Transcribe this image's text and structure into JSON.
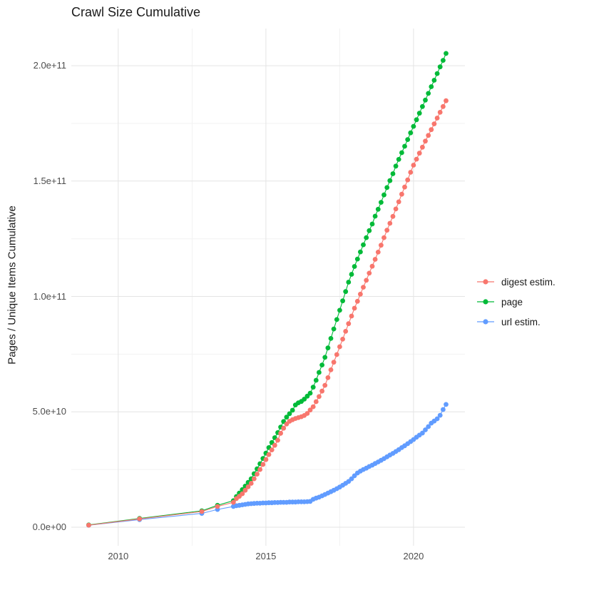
{
  "chart": {
    "title": "Crawl Size Cumulative",
    "y_axis_title": "Pages / Unique Items Cumulative"
  },
  "style": {
    "background": "#ffffff",
    "title_color": "#1a1a1a",
    "tick_label_color": "#4d4d4d",
    "grid_major_color": "#e4e4e4",
    "grid_minor_color": "#f2f2f2",
    "series_colors": {
      "digest": "#F8766D",
      "page": "#00BA38",
      "url": "#619CFF"
    }
  },
  "chart_data": {
    "type": "line",
    "title": "Crawl Size Cumulative",
    "xlabel": "",
    "ylabel": "Pages / Unique Items Cumulative",
    "value_unit": "billions (1e9) of pages / unique items, cumulative",
    "legend_position": "right-center",
    "grid": "major and minor, light gray on white panel",
    "marker_style": "filled circle on thin line",
    "axes": {
      "xlim": [
        2008.41,
        2021.74
      ],
      "ylim": [
        -8.04,
        216.1
      ],
      "x_major_ticks": [
        2010,
        2015,
        2020
      ],
      "x_tick_labels": [
        "2010",
        "2015",
        "2020"
      ],
      "x_minor_ticks": [
        2012.5,
        2017.5
      ],
      "y_major_ticks": [
        0,
        50,
        100,
        150,
        200
      ],
      "y_tick_labels": [
        "0.0e+00",
        "5.0e+10",
        "1.0e+11",
        "1.5e+11",
        "2.0e+11"
      ],
      "y_minor_ticks": [
        25,
        75,
        125,
        175
      ]
    },
    "x": [
      2009.0,
      2010.72,
      2012.83,
      2013.36,
      2013.9,
      2014.0,
      2014.1,
      2014.2,
      2014.3,
      2014.4,
      2014.5,
      2014.6,
      2014.7,
      2014.8,
      2014.9,
      2015.0,
      2015.1,
      2015.2,
      2015.3,
      2015.4,
      2015.5,
      2015.6,
      2015.7,
      2015.8,
      2015.9,
      2016.0,
      2016.1,
      2016.2,
      2016.3,
      2016.4,
      2016.5,
      2016.6,
      2016.7,
      2016.8,
      2016.9,
      2017.0,
      2017.1,
      2017.2,
      2017.3,
      2017.4,
      2017.5,
      2017.6,
      2017.7,
      2017.8,
      2017.9,
      2018.0,
      2018.1,
      2018.2,
      2018.3,
      2018.4,
      2018.5,
      2018.6,
      2018.7,
      2018.8,
      2018.9,
      2019.0,
      2019.1,
      2019.2,
      2019.3,
      2019.4,
      2019.5,
      2019.6,
      2019.7,
      2019.8,
      2019.9,
      2020.0,
      2020.1,
      2020.2,
      2020.3,
      2020.4,
      2020.5,
      2020.6,
      2020.7,
      2020.8,
      2020.9,
      2021.0,
      2021.1
    ],
    "series": [
      {
        "name": "digest estim.",
        "color": "#F8766D",
        "values": [
          0.9,
          3.6,
          6.8,
          9.0,
          10.8,
          12.4,
          13.4,
          14.5,
          16.0,
          17.5,
          19.0,
          21.0,
          23.0,
          25.0,
          27.2,
          29.3,
          31.5,
          33.5,
          35.5,
          37.7,
          40.7,
          42.9,
          44.7,
          45.9,
          46.6,
          47.1,
          47.5,
          47.9,
          48.4,
          49.3,
          50.8,
          52.2,
          54.4,
          56.6,
          59.0,
          61.5,
          64.8,
          68.2,
          71.5,
          74.8,
          78.2,
          81.5,
          84.9,
          88.2,
          91.5,
          94.9,
          97.9,
          101.0,
          104.0,
          107.0,
          110.1,
          113.1,
          116.1,
          119.2,
          122.2,
          125.5,
          128.7,
          131.7,
          134.7,
          137.9,
          141.0,
          144.3,
          147.4,
          150.5,
          153.8,
          156.9,
          159.5,
          162.1,
          164.7,
          167.3,
          169.8,
          172.3,
          174.8,
          177.3,
          179.8,
          182.3,
          184.8
        ]
      },
      {
        "name": "page",
        "color": "#00BA38",
        "values": [
          1.0,
          3.8,
          7.1,
          9.5,
          11.5,
          13.3,
          14.8,
          16.3,
          17.8,
          19.4,
          21.0,
          23.2,
          25.3,
          27.5,
          29.8,
          32.1,
          34.5,
          36.7,
          38.8,
          41.0,
          43.4,
          45.8,
          47.7,
          49.2,
          50.7,
          53.0,
          53.9,
          54.5,
          55.5,
          56.8,
          58.1,
          60.7,
          63.7,
          67.1,
          70.3,
          73.6,
          77.7,
          81.8,
          85.9,
          90.0,
          94.0,
          98.1,
          102.1,
          106.2,
          109.6,
          113.0,
          116.2,
          119.3,
          122.4,
          125.5,
          128.5,
          131.4,
          134.8,
          137.8,
          140.8,
          144.0,
          147.2,
          150.2,
          153.2,
          156.5,
          159.4,
          162.3,
          165.1,
          168.0,
          170.9,
          173.7,
          176.6,
          179.4,
          182.3,
          185.1,
          188.0,
          190.9,
          193.7,
          196.6,
          199.5,
          202.3,
          205.3
        ]
      },
      {
        "name": "url estim.",
        "color": "#619CFF",
        "values": [
          0.85,
          3.3,
          6.0,
          7.7,
          9.0,
          9.3,
          9.5,
          9.7,
          9.9,
          10.1,
          10.2,
          10.3,
          10.4,
          10.4,
          10.5,
          10.5,
          10.6,
          10.6,
          10.7,
          10.7,
          10.8,
          10.8,
          10.8,
          10.9,
          10.9,
          10.9,
          11.0,
          11.0,
          11.0,
          11.1,
          11.2,
          12.1,
          12.6,
          13.0,
          13.6,
          14.2,
          14.8,
          15.4,
          16.0,
          16.7,
          17.4,
          18.2,
          19.0,
          19.8,
          21.0,
          22.3,
          23.5,
          24.3,
          25.0,
          25.6,
          26.3,
          26.9,
          27.6,
          28.3,
          29.0,
          29.7,
          30.5,
          31.3,
          32.0,
          32.8,
          33.6,
          34.5,
          35.3,
          36.2,
          37.1,
          38.0,
          39.0,
          39.9,
          40.8,
          42.2,
          43.6,
          45.1,
          46.0,
          47.0,
          48.5,
          51.0,
          53.2
        ]
      }
    ],
    "draw_order": [
      2,
      1,
      0
    ]
  }
}
